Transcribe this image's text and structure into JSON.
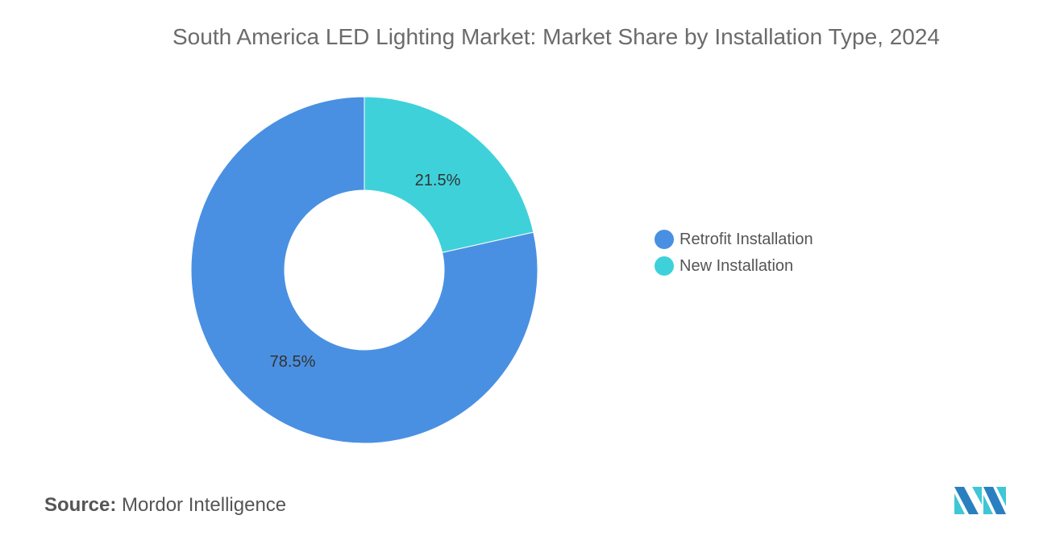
{
  "chart_data": {
    "type": "pie",
    "variant": "donut",
    "title": "South America LED Lighting Market: Market Share by Installation Type, 2024",
    "categories": [
      "Retrofit Installation",
      "New Installation"
    ],
    "values": [
      78.5,
      21.5
    ],
    "labels": [
      "78.5%",
      "21.5%"
    ],
    "colors": [
      "#4a90e2",
      "#3fd1da"
    ],
    "legend_position": "right"
  },
  "source": {
    "label": "Source:",
    "value": "Mordor Intelligence"
  },
  "logo_text": "Mordor Intelligence"
}
